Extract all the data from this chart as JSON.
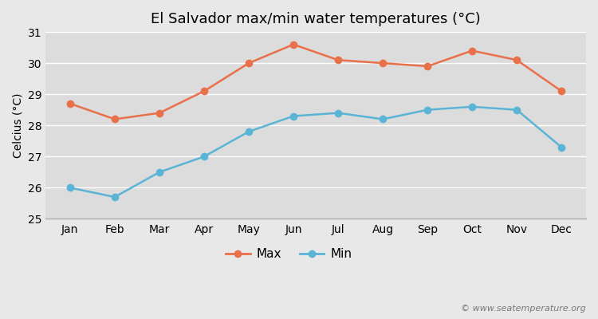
{
  "title": "El Salvador max/min water temperatures (°C)",
  "ylabel": "Celcius (°C)",
  "months": [
    "Jan",
    "Feb",
    "Mar",
    "Apr",
    "May",
    "Jun",
    "Jul",
    "Aug",
    "Sep",
    "Oct",
    "Nov",
    "Dec"
  ],
  "max_temps": [
    28.7,
    28.2,
    28.4,
    29.1,
    30.0,
    30.6,
    30.1,
    30.0,
    29.9,
    30.4,
    30.1,
    29.1
  ],
  "min_temps": [
    26.0,
    25.7,
    26.5,
    27.0,
    27.8,
    28.3,
    28.4,
    28.2,
    28.5,
    28.6,
    28.5,
    27.3
  ],
  "max_color": "#e8704a",
  "min_color": "#5ab4d6",
  "bg_color": "#e8e8e8",
  "plot_bg_color": "#dcdcdc",
  "grid_color": "#ffffff",
  "ylim": [
    25,
    31
  ],
  "yticks": [
    25,
    26,
    27,
    28,
    29,
    30,
    31
  ],
  "watermark": "© www.seatemperature.org",
  "legend_labels": [
    "Max",
    "Min"
  ],
  "title_fontsize": 13,
  "label_fontsize": 10,
  "tick_fontsize": 10,
  "marker_size": 7,
  "line_width": 1.8
}
